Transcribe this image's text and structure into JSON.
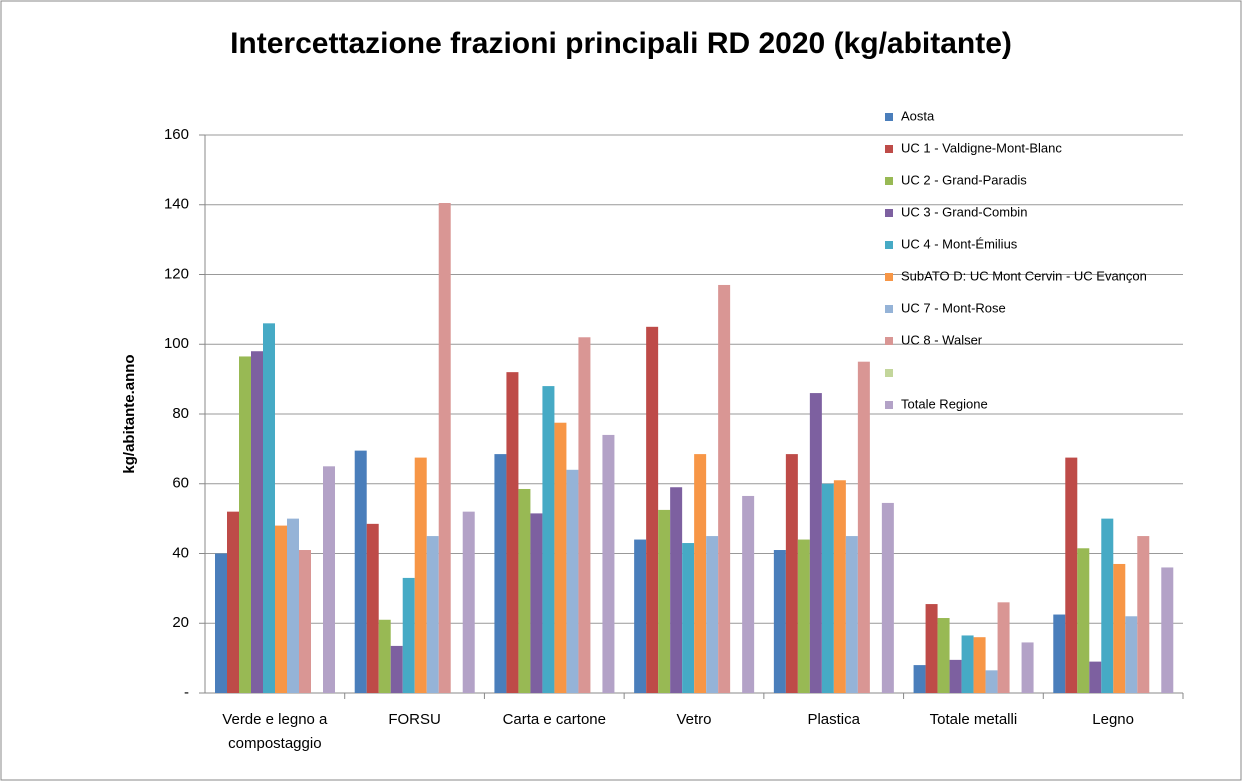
{
  "chart_data": {
    "type": "bar",
    "title": "Intercettazione frazioni principali RD 2020 (kg/abitante)",
    "y_label": "kg/abitante.anno",
    "categories": [
      "Verde e legno a compostaggio",
      "FORSU",
      "Carta e cartone",
      "Vetro",
      "Plastica",
      "Totale metalli",
      "Legno"
    ],
    "series": [
      {
        "name": "Aosta",
        "color": "#4a7ebb",
        "values": [
          40,
          69.5,
          68.5,
          44,
          41,
          8,
          22.5
        ]
      },
      {
        "name": "UC 1 - Valdigne-Mont-Blanc",
        "color": "#be4b48",
        "values": [
          52,
          48.5,
          92,
          105,
          68.5,
          25.5,
          67.5
        ]
      },
      {
        "name": "UC 2 - Grand-Paradis",
        "color": "#98b954",
        "values": [
          96.5,
          21,
          58.5,
          52.5,
          44,
          21.5,
          41.5
        ]
      },
      {
        "name": "UC 3 - Grand-Combin",
        "color": "#7d60a0",
        "values": [
          98,
          13.5,
          51.5,
          59,
          86,
          9.5,
          9
        ]
      },
      {
        "name": "UC 4 - Mont-Émilius",
        "color": "#46aac5",
        "values": [
          106,
          33,
          88,
          43,
          60,
          16.5,
          50
        ]
      },
      {
        "name": "SubATO D: UC Mont Cervin - UC Evançon",
        "color": "#f79646",
        "values": [
          48,
          67.5,
          77.5,
          68.5,
          61,
          16,
          37
        ]
      },
      {
        "name": "UC 7 - Mont-Rose",
        "color": "#95b3d7",
        "values": [
          50,
          45,
          64,
          45,
          45,
          6.5,
          22
        ]
      },
      {
        "name": "UC 8 - Walser",
        "color": "#d99694",
        "values": [
          41,
          140.5,
          102,
          117,
          95,
          26,
          45
        ]
      },
      {
        "color": "#c3d69b",
        "values": [
          null,
          null,
          null,
          null,
          null,
          null,
          null
        ]
      },
      {
        "name": "Totale Regione",
        "color": "#b3a2c7",
        "values": [
          65,
          52,
          74,
          56.5,
          54.5,
          14.5,
          36
        ]
      }
    ],
    "ylim": [
      0,
      160
    ],
    "yticks": [
      {
        "value": 0,
        "label": "-"
      },
      20,
      40,
      60,
      80,
      100,
      120,
      140,
      160
    ],
    "grid": true,
    "legend": "right"
  }
}
